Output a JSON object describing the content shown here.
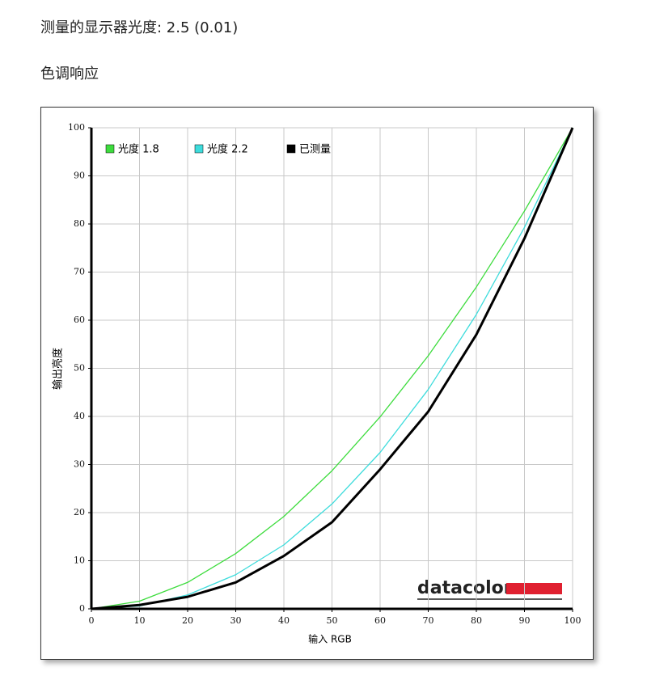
{
  "header": {
    "gamma_line": "测量的显示器光度: 2.5 (0.01)",
    "section": "色调响应"
  },
  "chart_data": {
    "type": "line",
    "x_label": "输入 RGB",
    "y_label": "输出亮度",
    "brand": "datacolor",
    "x": [
      0,
      10,
      20,
      30,
      40,
      50,
      60,
      70,
      80,
      90,
      100
    ],
    "series": [
      {
        "name": "光度 1.8",
        "color": "#3ddc3d",
        "values": [
          0,
          1.6,
          5.5,
          11.5,
          19.2,
          28.7,
          39.9,
          52.6,
          66.9,
          82.7,
          100
        ]
      },
      {
        "name": "光度 2.2",
        "color": "#3ddcdc",
        "values": [
          0,
          0.6,
          2.9,
          7.1,
          13.3,
          21.8,
          32.5,
          45.6,
          61.2,
          79.3,
          100
        ]
      },
      {
        "name": "已测量",
        "color": "#000000",
        "values": [
          0,
          0.8,
          2.5,
          5.5,
          11,
          18,
          29,
          41,
          57,
          77,
          100
        ]
      }
    ],
    "xlim": [
      0,
      100
    ],
    "ylim": [
      0,
      100
    ],
    "xticks": [
      0,
      10,
      20,
      30,
      40,
      50,
      60,
      70,
      80,
      90,
      100
    ],
    "yticks": [
      0,
      10,
      20,
      30,
      40,
      50,
      60,
      70,
      80,
      90,
      100
    ],
    "grid": true,
    "legend": "top-left"
  }
}
